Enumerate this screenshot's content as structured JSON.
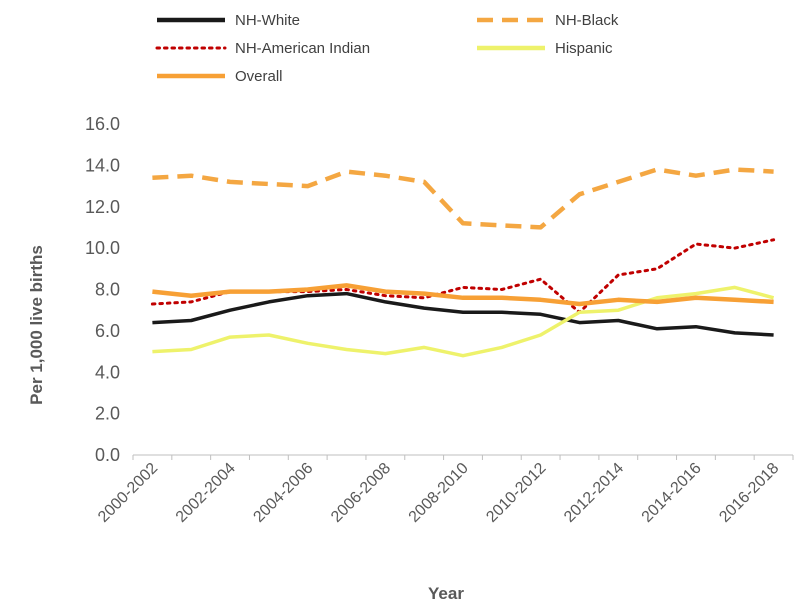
{
  "chart_data": {
    "type": "line",
    "title": "",
    "xlabel": "Year",
    "ylabel": "Per 1,000 live births",
    "ylim": [
      0,
      16
    ],
    "y_ticks": [
      "0.0",
      "2.0",
      "4.0",
      "6.0",
      "8.0",
      "10.0",
      "12.0",
      "14.0",
      "16.0"
    ],
    "x_tick_labels": [
      "2000-2002",
      "2002-2004",
      "2004-2006",
      "2006-2008",
      "2008-2010",
      "2010-2012",
      "2012-2014",
      "2014-2016",
      "2016-2018"
    ],
    "x": [
      "2000-2002",
      "2001-2003",
      "2002-2004",
      "2003-2005",
      "2004-2006",
      "2005-2007",
      "2006-2008",
      "2007-2009",
      "2008-2010",
      "2009-2011",
      "2010-2012",
      "2011-2013",
      "2012-2014",
      "2013-2015",
      "2014-2016",
      "2015-2017",
      "2016-2018"
    ],
    "legend_position": "top",
    "grid": false,
    "series": [
      {
        "name": "NH-White",
        "color": "#1a1a1a",
        "dash": "solid",
        "values": [
          6.4,
          6.5,
          7.0,
          7.4,
          7.7,
          7.8,
          7.4,
          7.1,
          6.9,
          6.9,
          6.8,
          6.4,
          6.5,
          6.1,
          6.2,
          5.9,
          5.8
        ]
      },
      {
        "name": "NH-Black",
        "color": "#f4a742",
        "dash": "dashed",
        "values": [
          13.4,
          13.5,
          13.2,
          13.1,
          13.0,
          13.7,
          13.5,
          13.2,
          11.2,
          11.1,
          11.0,
          12.6,
          13.2,
          13.8,
          13.5,
          13.8,
          13.7
        ]
      },
      {
        "name": "NH-American Indian",
        "color": "#c00000",
        "dash": "dotted",
        "values": [
          7.3,
          7.4,
          7.9,
          7.9,
          7.9,
          8.0,
          7.7,
          7.6,
          8.1,
          8.0,
          8.5,
          6.9,
          8.7,
          9.0,
          10.2,
          10.0,
          10.4
        ]
      },
      {
        "name": "Hispanic",
        "color": "#eef26b",
        "dash": "solid",
        "values": [
          5.0,
          5.1,
          5.7,
          5.8,
          5.4,
          5.1,
          4.9,
          5.2,
          4.8,
          5.2,
          5.8,
          6.9,
          7.0,
          7.6,
          7.8,
          8.1,
          7.6
        ]
      },
      {
        "name": "Overall",
        "color": "#f7a035",
        "dash": "solid",
        "values": [
          7.9,
          7.7,
          7.9,
          7.9,
          8.0,
          8.2,
          7.9,
          7.8,
          7.6,
          7.6,
          7.5,
          7.3,
          7.5,
          7.4,
          7.6,
          7.5,
          7.4
        ]
      }
    ]
  }
}
